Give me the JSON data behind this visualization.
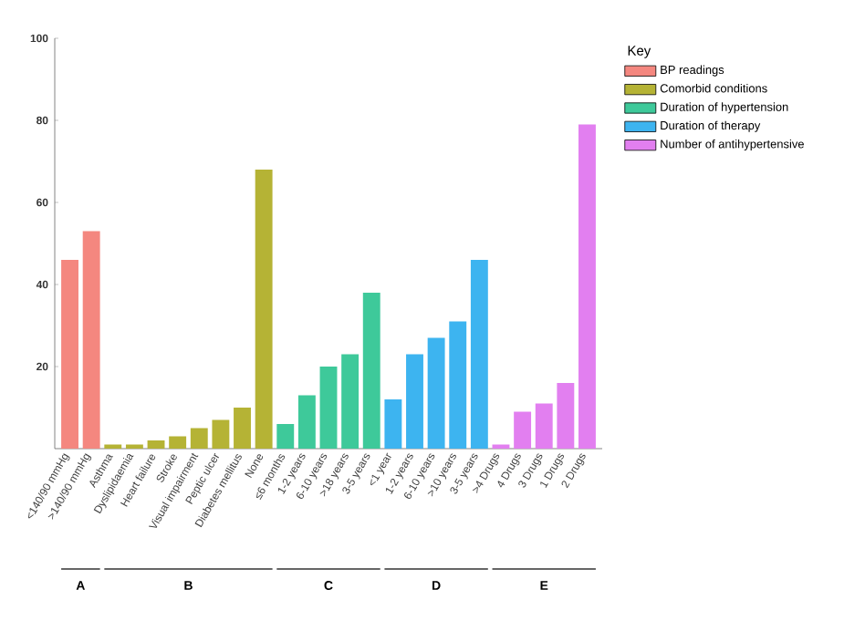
{
  "chart_data": {
    "type": "bar",
    "legend_title": "Key",
    "legend": "top right",
    "categories": [
      "<140/90 mmHg",
      ">140/90 mmHg",
      "Asthma",
      "Dyslipidaemia",
      "Heart failure",
      "Stroke",
      "Visual impairment",
      "Peptic ulcer",
      "Diabetes mellitus",
      "None",
      "≤6 months",
      "1-2 years",
      "6-10 years",
      ">18 years",
      "3-5 years",
      "<1 year",
      "1-2 years",
      "6-10 years",
      ">10 years",
      "3-5 years",
      ">4 Drugs",
      "4 Drugs",
      "3 Drugs",
      "1 Drugs",
      "2 Drugs"
    ],
    "series": [
      {
        "name": "BP readings",
        "color": "#f4877f",
        "values": [
          46,
          53,
          null,
          null,
          null,
          null,
          null,
          null,
          null,
          null,
          null,
          null,
          null,
          null,
          null,
          null,
          null,
          null,
          null,
          null,
          null,
          null,
          null,
          null,
          null
        ]
      },
      {
        "name": "Comorbid conditions",
        "color": "#b5b335",
        "values": [
          null,
          null,
          1,
          1,
          2,
          3,
          5,
          7,
          10,
          68,
          null,
          null,
          null,
          null,
          null,
          null,
          null,
          null,
          null,
          null,
          null,
          null,
          null,
          null,
          null
        ]
      },
      {
        "name": "Duration of hypertension",
        "color": "#3ec99a",
        "values": [
          null,
          null,
          null,
          null,
          null,
          null,
          null,
          null,
          null,
          null,
          6,
          13,
          20,
          23,
          38,
          null,
          null,
          null,
          null,
          null,
          null,
          null,
          null,
          null,
          null
        ]
      },
      {
        "name": "Duration of therapy",
        "color": "#3db4f0",
        "values": [
          null,
          null,
          null,
          null,
          null,
          null,
          null,
          null,
          null,
          null,
          null,
          null,
          null,
          null,
          null,
          12,
          23,
          27,
          31,
          46,
          null,
          null,
          null,
          null,
          null
        ]
      },
      {
        "name": "Number of antihypertensive",
        "color": "#e27ff0",
        "values": [
          null,
          null,
          null,
          null,
          null,
          null,
          null,
          null,
          null,
          null,
          null,
          null,
          null,
          null,
          null,
          null,
          null,
          null,
          null,
          null,
          1,
          9,
          11,
          16,
          79
        ]
      }
    ],
    "annotations": [
      "A",
      "B",
      "C",
      "D",
      "E"
    ],
    "ylim": [
      0,
      100
    ],
    "yticks": [
      20,
      40,
      60,
      80,
      100
    ]
  }
}
